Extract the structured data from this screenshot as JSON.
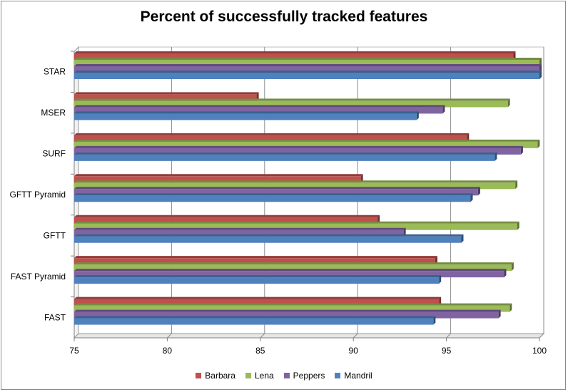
{
  "chart_data": {
    "type": "bar",
    "orientation": "horizontal",
    "title": "Percent of successfully tracked features",
    "categories": [
      "STAR",
      "MSER",
      "SURF",
      "GFTT Pyramid",
      "GFTT",
      "FAST Pyramid",
      "FAST"
    ],
    "series": [
      {
        "name": "Barbara",
        "color": "#c0504d",
        "values": [
          98.6,
          84.8,
          96.1,
          90.4,
          91.3,
          94.4,
          94.6
        ]
      },
      {
        "name": "Lena",
        "color": "#9bbb59",
        "values": [
          100.0,
          98.3,
          99.9,
          98.7,
          98.8,
          98.5,
          98.4
        ]
      },
      {
        "name": "Peppers",
        "color": "#8064a2",
        "values": [
          100.0,
          94.8,
          99.0,
          96.7,
          92.7,
          98.1,
          97.8
        ]
      },
      {
        "name": "Mandril",
        "color": "#4f81bd",
        "values": [
          100.0,
          93.4,
          97.6,
          96.3,
          95.8,
          94.6,
          94.3
        ]
      }
    ],
    "xlim": [
      75,
      100
    ],
    "xticks": [
      "75",
      "80",
      "85",
      "90",
      "95",
      "100"
    ],
    "grid": true,
    "legend_position": "bottom"
  }
}
